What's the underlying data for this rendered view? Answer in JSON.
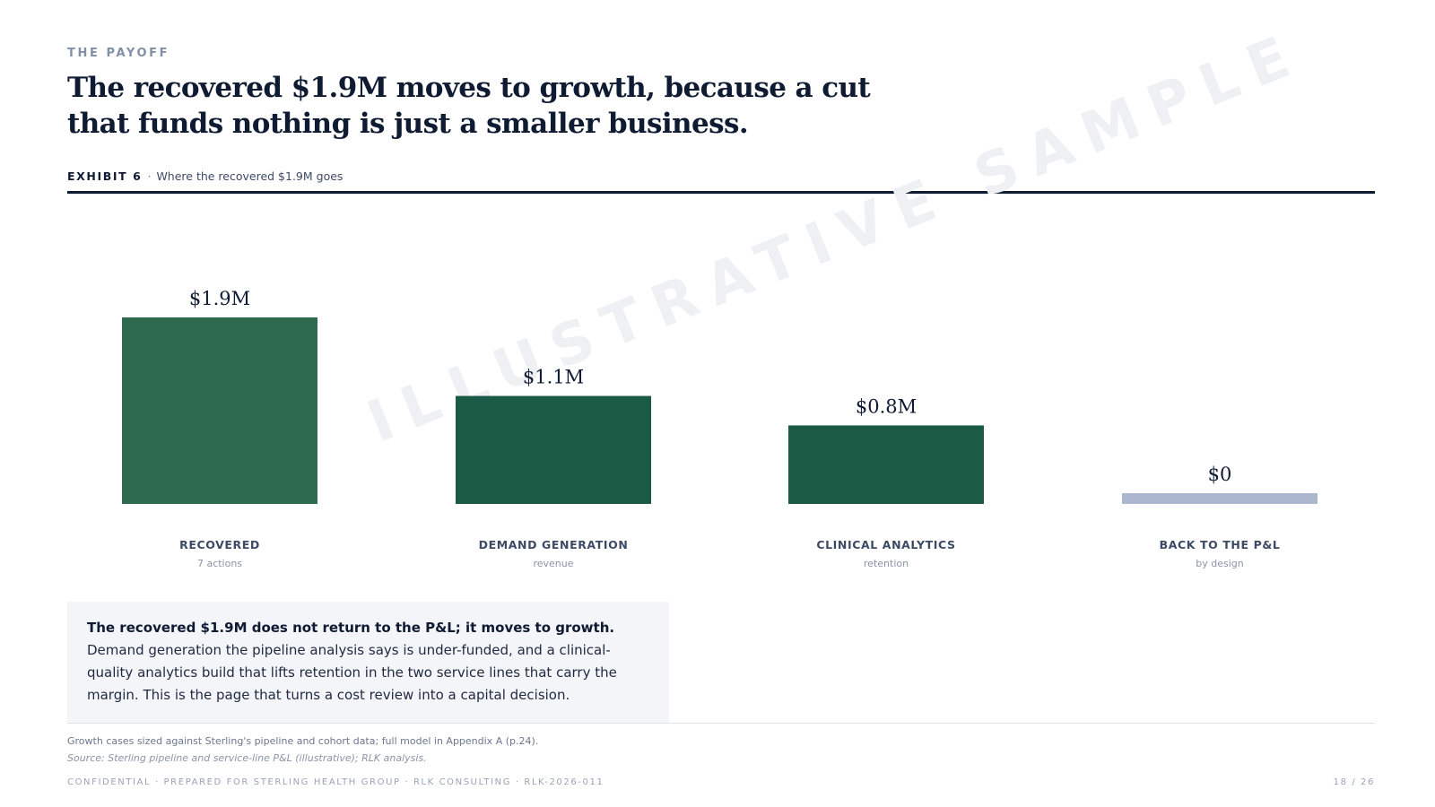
{
  "eyebrow": "THE PAYOFF",
  "headline": "The recovered $1.9M moves to growth, because a cut that funds nothing is just a smaller business.",
  "exhibit": {
    "tag": "EXHIBIT 6",
    "separator": "·",
    "caption": "Where the recovered $1.9M goes"
  },
  "watermark": "ILLUSTRATIVE SAMPLE",
  "colors": {
    "recovered": "#2d6a4f",
    "growth": "#1b5a45",
    "pnl": "#aab7cf"
  },
  "chart_data": {
    "type": "bar",
    "categories": [
      "RECOVERED",
      "DEMAND GENERATION",
      "CLINICAL ANALYTICS",
      "BACK TO THE P&L"
    ],
    "sublabels": [
      "7 actions",
      "revenue",
      "retention",
      "by design"
    ],
    "values": [
      1.9,
      1.1,
      0.8,
      0
    ],
    "data_labels": [
      "$1.9M",
      "$1.1M",
      "$0.8M",
      "$0"
    ],
    "ylim": [
      0,
      1.9
    ],
    "grid": false,
    "legend": "none"
  },
  "callout": {
    "lead": "The recovered $1.9M does not return to the P&L; it moves to growth.",
    "body": " Demand generation the pipeline analysis says is under-funded, and a clinical-quality analytics build that lifts retention in the two service lines that carry the margin. This is the page that turns a cost review into a capital decision."
  },
  "note": "Growth cases sized against Sterling's pipeline and cohort data; full model in Appendix A (p.24).",
  "source": "Source: Sterling pipeline and service-line P&L (illustrative); RLK analysis.",
  "footer": "CONFIDENTIAL · PREPARED FOR STERLING HEALTH GROUP · RLK CONSULTING · RLK-2026-011",
  "page": "18 / 26"
}
